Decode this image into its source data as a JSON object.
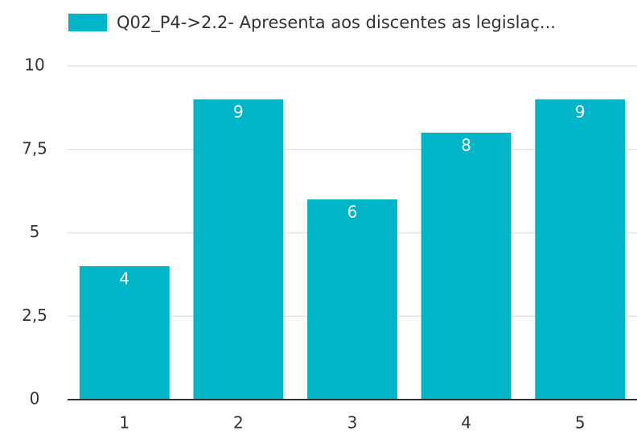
{
  "chart_data": {
    "type": "bar",
    "categories": [
      "1",
      "2",
      "3",
      "4",
      "5"
    ],
    "series": [
      {
        "name": "Q02_P4->2.2- Apresenta aos discentes as legislaç...",
        "color": "#00b5c8",
        "values": [
          4,
          9,
          6,
          8,
          9
        ]
      }
    ],
    "ylim": [
      0,
      10
    ],
    "yticks": [
      0,
      {
        "value": 2.5,
        "label": "2,5"
      },
      5,
      {
        "value": 7.5,
        "label": "7,5"
      },
      10
    ],
    "grid": true,
    "legend": "top"
  }
}
